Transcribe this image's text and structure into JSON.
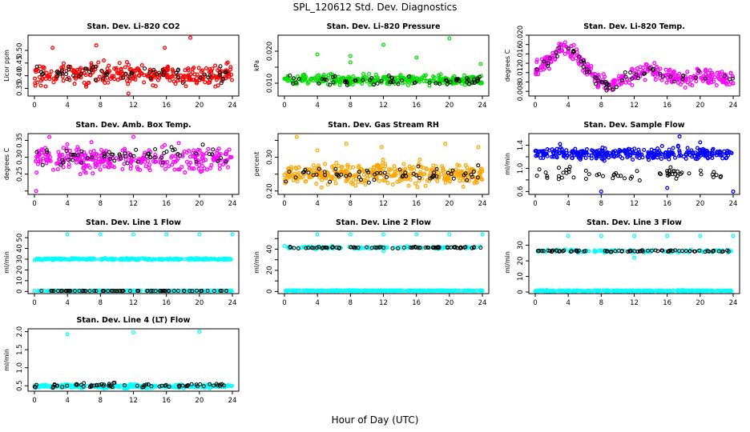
{
  "page": {
    "title": "SPL_120612  Std. Dev. Diagnostics",
    "xlabel": "Hour of Day (UTC)"
  },
  "colors": {
    "frame": "#000000",
    "ref_series": "#000000",
    "red": "#ff0000",
    "green": "#00dd00",
    "magenta": "#ff00ff",
    "orange": "#ffa500",
    "blue": "#0000ff",
    "cyan": "#00ffff"
  },
  "chart_data": [
    {
      "type": "scatter",
      "title": "Stan. Dev. Li-820 CO2",
      "ylabel": "Licor ppm",
      "xlim": [
        0,
        24
      ],
      "xticks": [
        0,
        4,
        8,
        12,
        16,
        20,
        24
      ],
      "ylim": [
        0.32,
        0.56
      ],
      "yticks": [
        0.35,
        0.4,
        0.45,
        0.5
      ],
      "ytick_labels": [
        "0.35",
        "0.40",
        "0.45",
        "0.50"
      ],
      "series": [
        {
          "color": "red",
          "band": [
            0.35,
            0.46
          ],
          "n": 300,
          "outliers": [
            [
              18.9,
              0.55
            ],
            [
              7.5,
              0.52
            ],
            [
              15.8,
              0.51
            ],
            [
              2.2,
              0.51
            ],
            [
              11.4,
              0.33
            ]
          ]
        },
        {
          "color": "ref_series",
          "band": [
            0.37,
            0.45
          ],
          "n": 60
        }
      ]
    },
    {
      "type": "scatter",
      "title": "Stan. Dev. Li-820 Pressure",
      "ylabel": "kPa",
      "xlim": [
        0,
        24
      ],
      "xticks": [
        0,
        4,
        8,
        12,
        16,
        20,
        24
      ],
      "ylim": [
        0.006,
        0.025
      ],
      "yticks": [
        0.01,
        0.015,
        0.02
      ],
      "ytick_labels": [
        "0.010",
        "",
        "0.020"
      ],
      "series": [
        {
          "color": "green",
          "band": [
            0.009,
            0.013
          ],
          "n": 330,
          "outliers": [
            [
              4,
              0.019
            ],
            [
              8,
              0.0185
            ],
            [
              12,
              0.022
            ],
            [
              16,
              0.018
            ],
            [
              20,
              0.024
            ],
            [
              23.8,
              0.016
            ],
            [
              8,
              0.0165
            ]
          ]
        },
        {
          "color": "ref_series",
          "band": [
            0.009,
            0.0125
          ],
          "n": 60
        }
      ]
    },
    {
      "type": "scatter",
      "title": "Stan. Dev. Li-820 Temp.",
      "ylabel": "degrees C",
      "xlim": [
        0,
        24
      ],
      "xticks": [
        0,
        4,
        8,
        12,
        16,
        20,
        24
      ],
      "ylim": [
        0.007,
        0.02
      ],
      "yticks": [
        0.008,
        0.01,
        0.012,
        0.014,
        0.016,
        0.018,
        0.02
      ],
      "ytick_labels": [
        "0.008",
        "",
        "0.012",
        "",
        "0.016",
        "",
        "0.020"
      ],
      "series": [
        {
          "color": "magenta",
          "profile": [
            [
              0,
              0.0125
            ],
            [
              2,
              0.015
            ],
            [
              3,
              0.0175
            ],
            [
              5,
              0.016
            ],
            [
              6,
              0.0135
            ],
            [
              7.5,
              0.0105
            ],
            [
              9,
              0.009
            ],
            [
              10.5,
              0.0105
            ],
            [
              12,
              0.0115
            ],
            [
              14,
              0.0125
            ],
            [
              16,
              0.0115
            ],
            [
              18,
              0.0105
            ],
            [
              20,
              0.0115
            ],
            [
              22,
              0.011
            ],
            [
              24,
              0.0105
            ]
          ],
          "spread": 0.0017,
          "n": 330
        },
        {
          "color": "ref_series",
          "profile": [
            [
              0,
              0.0125
            ],
            [
              2,
              0.015
            ],
            [
              3,
              0.0175
            ],
            [
              5,
              0.016
            ],
            [
              6,
              0.0135
            ],
            [
              7.5,
              0.0105
            ],
            [
              9,
              0.009
            ],
            [
              10.5,
              0.0105
            ],
            [
              12,
              0.0115
            ],
            [
              14,
              0.0125
            ],
            [
              16,
              0.0115
            ],
            [
              18,
              0.0105
            ],
            [
              20,
              0.0115
            ],
            [
              22,
              0.011
            ],
            [
              24,
              0.0105
            ]
          ],
          "spread": 0.0012,
          "n": 60
        }
      ]
    },
    {
      "type": "scatter",
      "title": "Stan. Dev. Amb. Box Temp.",
      "ylabel": "degrees C",
      "xlim": [
        0,
        24
      ],
      "xticks": [
        0,
        4,
        8,
        12,
        16,
        20,
        24
      ],
      "ylim": [
        0.19,
        0.37
      ],
      "yticks": [
        0.2,
        0.25,
        0.3,
        0.35
      ],
      "ytick_labels": [
        "",
        "0.25",
        "0.30",
        "0.35"
      ],
      "series": [
        {
          "color": "magenta",
          "band": [
            0.25,
            0.34
          ],
          "n": 300,
          "outliers": [
            [
              0.2,
              0.2
            ],
            [
              1.8,
              0.36
            ],
            [
              12,
              0.36
            ]
          ]
        },
        {
          "color": "ref_series",
          "band": [
            0.26,
            0.34
          ],
          "n": 60
        }
      ]
    },
    {
      "type": "scatter",
      "title": "Stan. Dev. Gas Stream RH",
      "ylabel": "percent",
      "xlim": [
        0,
        24
      ],
      "xticks": [
        0,
        4,
        8,
        12,
        16,
        20,
        24
      ],
      "ylim": [
        0.19,
        0.37
      ],
      "yticks": [
        0.2,
        0.25,
        0.3,
        0.35
      ],
      "ytick_labels": [
        "0.20",
        "",
        "0.30",
        ""
      ],
      "series": [
        {
          "color": "orange",
          "band": [
            0.21,
            0.29
          ],
          "n": 380,
          "outliers": [
            [
              1.5,
              0.36
            ],
            [
              7.5,
              0.34
            ],
            [
              11.8,
              0.33
            ],
            [
              19.5,
              0.34
            ],
            [
              23.5,
              0.33
            ],
            [
              4,
              0.32
            ]
          ]
        },
        {
          "color": "ref_series",
          "band": [
            0.22,
            0.28
          ],
          "n": 60
        }
      ]
    },
    {
      "type": "scatter",
      "title": "Stan. Dev. Sample Flow",
      "ylabel": "ml/min",
      "xlim": [
        0,
        24
      ],
      "xticks": [
        0,
        4,
        8,
        12,
        16,
        20,
        24
      ],
      "ylim": [
        0.55,
        1.6
      ],
      "yticks": [
        0.6,
        0.8,
        1.0,
        1.2,
        1.4
      ],
      "ytick_labels": [
        "0.6",
        "",
        "1.0",
        "",
        "1.4"
      ],
      "series": [
        {
          "color": "blue",
          "band": [
            1.13,
            1.38
          ],
          "n": 330,
          "outliers": [
            [
              8,
              0.6
            ],
            [
              16,
              0.66
            ],
            [
              24,
              0.6
            ],
            [
              17.5,
              1.55
            ],
            [
              3,
              1.42
            ],
            [
              20,
              1.45
            ]
          ]
        },
        {
          "color": "ref_series",
          "band": [
            0.75,
            1.05
          ],
          "n": 60
        }
      ]
    },
    {
      "type": "scatter",
      "title": "Stan. Dev. Line 1 Flow",
      "ylabel": "ml/min",
      "xlim": [
        0,
        24
      ],
      "xticks": [
        0,
        4,
        8,
        12,
        16,
        20,
        24
      ],
      "ylim": [
        -2,
        56
      ],
      "yticks": [
        0,
        10,
        20,
        30,
        40,
        50
      ],
      "ytick_labels": [
        "0",
        "10",
        "20",
        "30",
        "40",
        "50"
      ],
      "series": [
        {
          "color": "cyan",
          "band": [
            29,
            31
          ],
          "n": 300,
          "outliers": [
            [
              4,
              53
            ],
            [
              8,
              53
            ],
            [
              12,
              53
            ],
            [
              16,
              53
            ],
            [
              20,
              53
            ],
            [
              24,
              53
            ]
          ]
        },
        {
          "color": "cyan",
          "band": [
            0.3,
            0.8
          ],
          "n": 200
        },
        {
          "color": "ref_series",
          "band": [
            0.4,
            0.7
          ],
          "n": 70
        }
      ]
    },
    {
      "type": "scatter",
      "title": "Stan. Dev. Line 2 Flow",
      "ylabel": "ml/min",
      "xlim": [
        0,
        24
      ],
      "xticks": [
        0,
        4,
        8,
        12,
        16,
        20,
        24
      ],
      "ylim": [
        -2,
        57
      ],
      "yticks": [
        0,
        10,
        20,
        30,
        40,
        50
      ],
      "ytick_labels": [
        "0",
        "",
        "20",
        "",
        "40",
        ""
      ],
      "series": [
        {
          "color": "cyan",
          "band": [
            0.3,
            1.2
          ],
          "n": 300,
          "outliers": [
            [
              4,
              54
            ],
            [
              8,
              54
            ],
            [
              12,
              54
            ],
            [
              16,
              54
            ],
            [
              20,
              54
            ],
            [
              24,
              54
            ],
            [
              0,
              43
            ],
            [
              12,
              38
            ]
          ]
        },
        {
          "color": "cyan",
          "band": [
            40,
            43
          ],
          "n": 120
        },
        {
          "color": "ref_series",
          "band": [
            40.5,
            42.5
          ],
          "n": 75
        }
      ]
    },
    {
      "type": "scatter",
      "title": "Stan. Dev. Line 3 Flow",
      "ylabel": "ml/min",
      "xlim": [
        0,
        24
      ],
      "xticks": [
        0,
        4,
        8,
        12,
        16,
        20,
        24
      ],
      "ylim": [
        -1,
        39
      ],
      "yticks": [
        0,
        10,
        20,
        30
      ],
      "ytick_labels": [
        "0",
        "10",
        "20",
        "30"
      ],
      "series": [
        {
          "color": "cyan",
          "band": [
            0.3,
            1.2
          ],
          "n": 300,
          "outliers": [
            [
              4,
              36
            ],
            [
              8,
              36
            ],
            [
              12,
              36
            ],
            [
              16,
              36
            ],
            [
              20,
              36
            ],
            [
              24,
              36
            ],
            [
              12,
              22
            ]
          ]
        },
        {
          "color": "cyan",
          "band": [
            25,
            27.5
          ],
          "n": 120
        },
        {
          "color": "ref_series",
          "band": [
            25.5,
            27
          ],
          "n": 75
        }
      ]
    },
    {
      "type": "scatter",
      "title": "Stan. Dev. Line 4 (LT) Flow",
      "ylabel": "ml/min",
      "xlim": [
        0,
        24
      ],
      "xticks": [
        0,
        4,
        8,
        12,
        16,
        20,
        24
      ],
      "ylim": [
        0.35,
        2.08
      ],
      "yticks": [
        0.5,
        1.0,
        1.5,
        2.0
      ],
      "ytick_labels": [
        "0.5",
        "1.0",
        "1.5",
        "2.0"
      ],
      "series": [
        {
          "color": "cyan",
          "band": [
            0.42,
            0.55
          ],
          "n": 300,
          "outliers": [
            [
              4,
              1.93
            ],
            [
              12,
              1.98
            ],
            [
              20,
              2.0
            ]
          ]
        },
        {
          "color": "ref_series",
          "band": [
            0.44,
            0.58
          ],
          "n": 70
        }
      ]
    }
  ]
}
